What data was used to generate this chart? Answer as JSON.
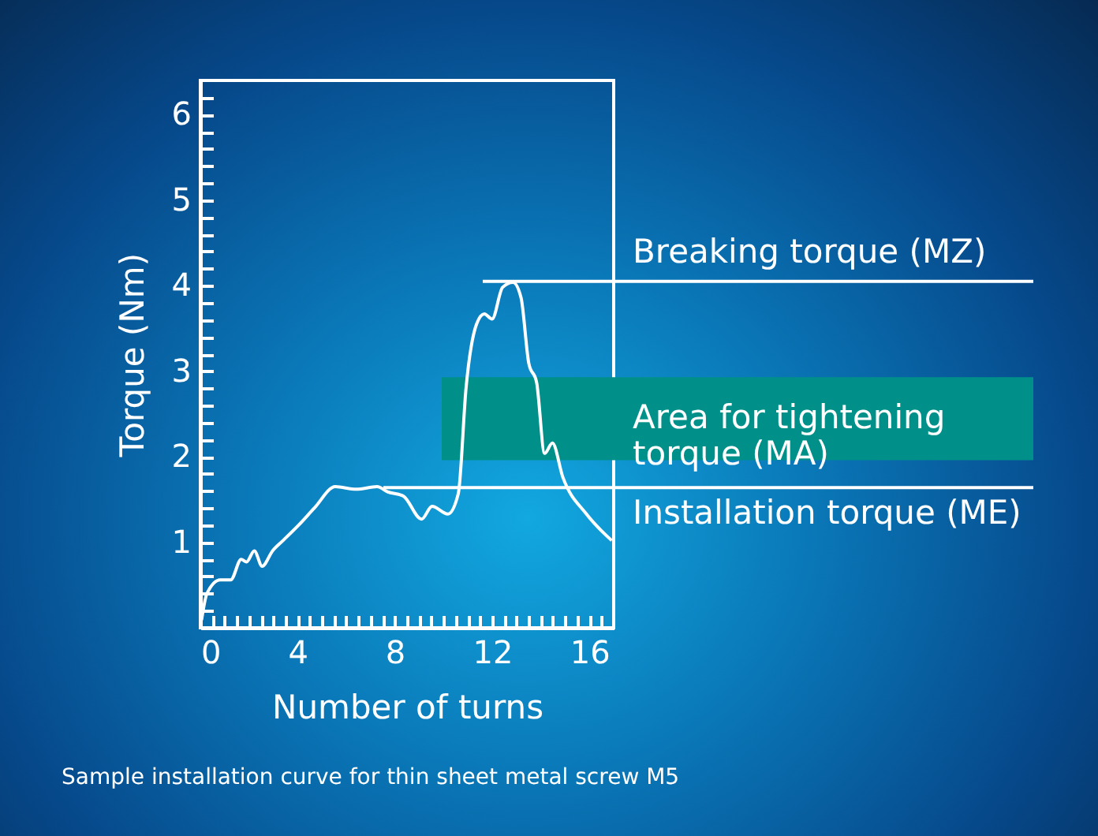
{
  "chart_data": {
    "type": "line",
    "xlabel": "Number of turns",
    "ylabel": "Torque (Nm)",
    "annotations": [
      "Sample installation curve for thin sheet metal screw M5"
    ],
    "x": [
      0.05,
      0.27,
      0.82,
      1.25,
      1.68,
      1.9,
      2.22,
      2.54,
      2.97,
      3.4,
      4.04,
      4.69,
      5.55,
      6.41,
      7.27,
      7.7,
      8.35,
      9.1,
      9.53,
      10.18,
      10.61,
      10.93,
      11.36,
      11.68,
      12.0,
      12.43,
      12.86,
      13.19,
      13.51,
      13.83,
      14.16,
      14.48,
      14.91,
      15.88,
      16.92
    ],
    "series": [
      {
        "color": "#ffffff",
        "values": [
          0.09,
          0.4,
          0.56,
          0.56,
          0.8,
          0.77,
          0.9,
          0.72,
          0.9,
          1.02,
          1.2,
          1.4,
          1.65,
          1.62,
          1.65,
          1.59,
          1.54,
          1.27,
          1.42,
          1.33,
          1.57,
          2.81,
          3.55,
          3.67,
          3.61,
          3.98,
          4.04,
          3.86,
          3.09,
          2.87,
          2.04,
          2.16,
          1.76,
          1.33,
          1.02
        ]
      }
    ],
    "xlim": [
      0,
      17
    ],
    "ylim": [
      0,
      6.4
    ],
    "xticks": [
      0,
      {
        "value": 0.5,
        "label": null
      },
      {
        "value": 1,
        "label": null
      },
      {
        "value": 1.5,
        "label": null
      },
      {
        "value": 2,
        "label": null
      },
      {
        "value": 2.5,
        "label": null
      },
      {
        "value": 3,
        "label": null
      },
      {
        "value": 3.5,
        "label": null
      },
      4,
      {
        "value": 4.5,
        "label": null
      },
      {
        "value": 5,
        "label": null
      },
      {
        "value": 5.5,
        "label": null
      },
      {
        "value": 6,
        "label": null
      },
      {
        "value": 6.5,
        "label": null
      },
      {
        "value": 7,
        "label": null
      },
      {
        "value": 7.5,
        "label": null
      },
      8,
      {
        "value": 8.5,
        "label": null
      },
      {
        "value": 9,
        "label": null
      },
      {
        "value": 9.5,
        "label": null
      },
      {
        "value": 10,
        "label": null
      },
      {
        "value": 10.5,
        "label": null
      },
      {
        "value": 11,
        "label": null
      },
      {
        "value": 11.5,
        "label": null
      },
      12,
      {
        "value": 12.5,
        "label": null
      },
      {
        "value": 13,
        "label": null
      },
      {
        "value": 13.5,
        "label": null
      },
      {
        "value": 14,
        "label": null
      },
      {
        "value": 14.5,
        "label": null
      },
      {
        "value": 15,
        "label": null
      },
      {
        "value": 15.5,
        "label": null
      },
      16,
      {
        "value": 16.5,
        "label": null
      }
    ],
    "yticks": [
      {
        "value": 0.2,
        "label": null
      },
      {
        "value": 0.4,
        "label": null
      },
      {
        "value": 0.6,
        "label": null
      },
      {
        "value": 0.8,
        "label": null
      },
      1,
      {
        "value": 1.2,
        "label": null
      },
      {
        "value": 1.4,
        "label": null
      },
      {
        "value": 1.6,
        "label": null
      },
      {
        "value": 1.8,
        "label": null
      },
      2,
      {
        "value": 2.2,
        "label": null
      },
      {
        "value": 2.4,
        "label": null
      },
      {
        "value": 2.6,
        "label": null
      },
      {
        "value": 2.8,
        "label": null
      },
      3,
      {
        "value": 3.2,
        "label": null
      },
      {
        "value": 3.4,
        "label": null
      },
      {
        "value": 3.6,
        "label": null
      },
      {
        "value": 3.8,
        "label": null
      },
      4,
      {
        "value": 4.2,
        "label": null
      },
      {
        "value": 4.4,
        "label": null
      },
      {
        "value": 4.6,
        "label": null
      },
      {
        "value": 4.8,
        "label": null
      },
      5,
      {
        "value": 5.2,
        "label": null
      },
      {
        "value": 5.4,
        "label": null
      },
      {
        "value": 5.6,
        "label": null
      },
      {
        "value": 5.8,
        "label": null
      },
      6,
      {
        "value": 6.2,
        "label": null
      }
    ],
    "ref_lines": [
      {
        "axis": "y",
        "value": 4.05,
        "label": "Breaking torque (MZ)",
        "color": "#ffffff"
      },
      {
        "axis": "y",
        "value": 1.64,
        "label": "Installation torque (ME)",
        "color": "#ffffff"
      }
    ],
    "bands": [
      {
        "axis": "y",
        "from": 1.96,
        "to": 2.93,
        "label": "Area for tightening torque (MA)",
        "color": "#00908a"
      }
    ],
    "marker": "none",
    "line_style": "solid"
  }
}
